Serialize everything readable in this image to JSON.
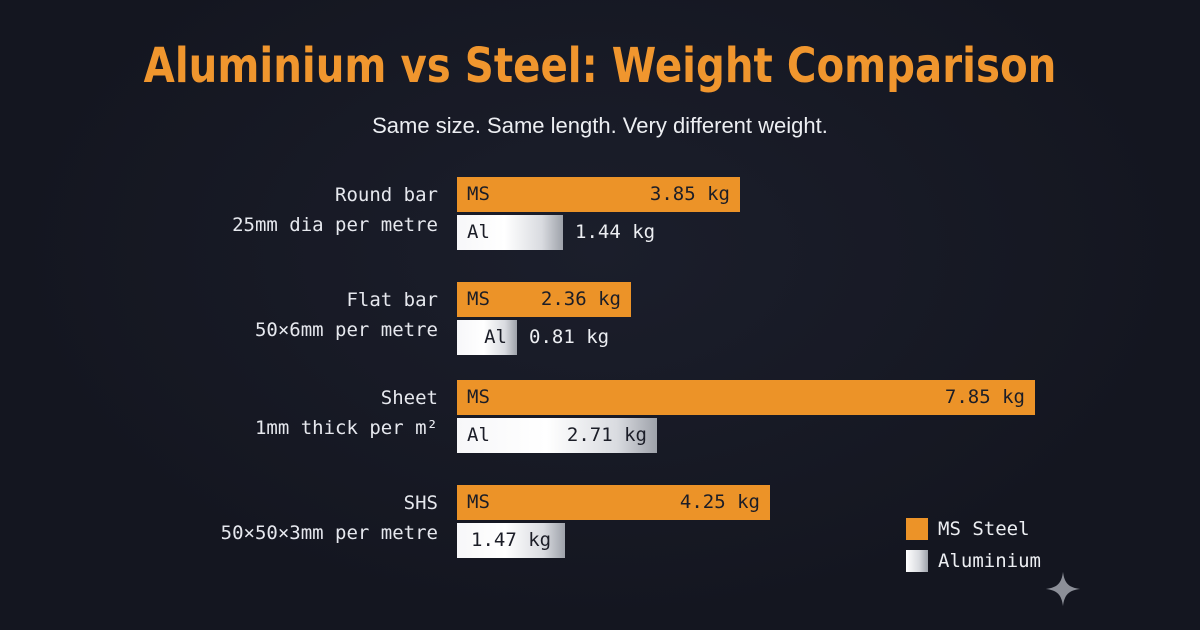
{
  "title": "Aluminium vs Steel: Weight Comparison",
  "subtitle": "Same size. Same length. Very different weight.",
  "chart_data": {
    "type": "bar",
    "orientation": "horizontal",
    "title": "Aluminium vs Steel: Weight Comparison",
    "subtitle": "Same size. Same length. Very different weight.",
    "unit": "kg",
    "categories": [
      {
        "line1": "Round bar",
        "line2": "25mm dia per metre"
      },
      {
        "line1": "Flat bar",
        "line2": "50×6mm per metre"
      },
      {
        "line1": "Sheet",
        "line2": "1mm thick per m²"
      },
      {
        "line1": "SHS",
        "line2": "50×50×3mm per metre"
      }
    ],
    "series": [
      {
        "name": "MS Steel",
        "tag": "MS",
        "values": [
          3.85,
          2.36,
          7.85,
          4.25
        ],
        "labels": [
          "3.85 kg",
          "2.36 kg",
          "7.85 kg",
          "4.25 kg"
        ]
      },
      {
        "name": "Aluminium",
        "tag": "Al",
        "values": [
          1.44,
          0.81,
          2.71,
          1.47
        ],
        "labels": [
          "1.44 kg",
          "0.81 kg",
          "2.71 kg",
          "1.47 kg"
        ]
      }
    ],
    "xlim": [
      0,
      7.85
    ],
    "grid": false,
    "legend_position": "bottom-right"
  },
  "colors": {
    "background": "#141620",
    "title": "#f0962e",
    "ms_steel": "#ec9328",
    "aluminium": "#ffffff"
  },
  "icons": {
    "corner": "sparkle-icon"
  }
}
